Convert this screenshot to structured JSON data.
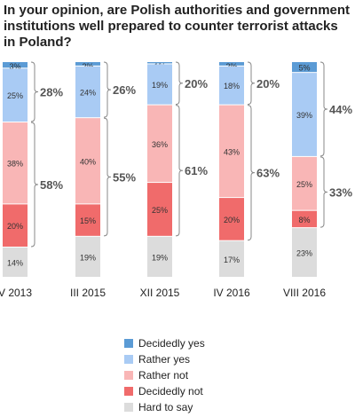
{
  "chart_data": {
    "type": "bar",
    "stacked": true,
    "title": "In your opinion, are Polish authorities and government institutions well prepared to counter terrorist attacks in Poland?",
    "categories": [
      "V 2013",
      "III 2015",
      "XII 2015",
      "IV 2016",
      "VIII 2016"
    ],
    "series": [
      {
        "name": "Decidedly yes",
        "values": [
          3,
          2,
          1,
          2,
          5
        ],
        "labels": [
          "3%",
          "2%",
          "1%",
          "2%",
          "5%"
        ],
        "color": "#5b9bd5"
      },
      {
        "name": "Rather yes",
        "values": [
          25,
          24,
          19,
          18,
          39
        ],
        "labels": [
          "25%",
          "24%",
          "19%",
          "18%",
          "39%"
        ],
        "color": "#a9cbf4"
      },
      {
        "name": "Rather not",
        "values": [
          38,
          40,
          36,
          43,
          25
        ],
        "labels": [
          "38%",
          "40%",
          "36%",
          "43%",
          "25%"
        ],
        "color": "#f9b6b6"
      },
      {
        "name": "Decidedly not",
        "values": [
          20,
          15,
          25,
          20,
          8
        ],
        "labels": [
          "20%",
          "15%",
          "25%",
          "20%",
          "8%"
        ],
        "color": "#f06b6b"
      },
      {
        "name": "Hard to say",
        "values": [
          14,
          19,
          19,
          17,
          23
        ],
        "labels": [
          "14%",
          "19%",
          "19%",
          "17%",
          "23%"
        ],
        "color": "#dcdcdc"
      }
    ],
    "totals": {
      "yes": [
        "28%",
        "26%",
        "20%",
        "20%",
        "44%"
      ],
      "not": [
        "58%",
        "55%",
        "61%",
        "63%",
        "33%"
      ]
    },
    "legend_position": "bottom-center"
  }
}
